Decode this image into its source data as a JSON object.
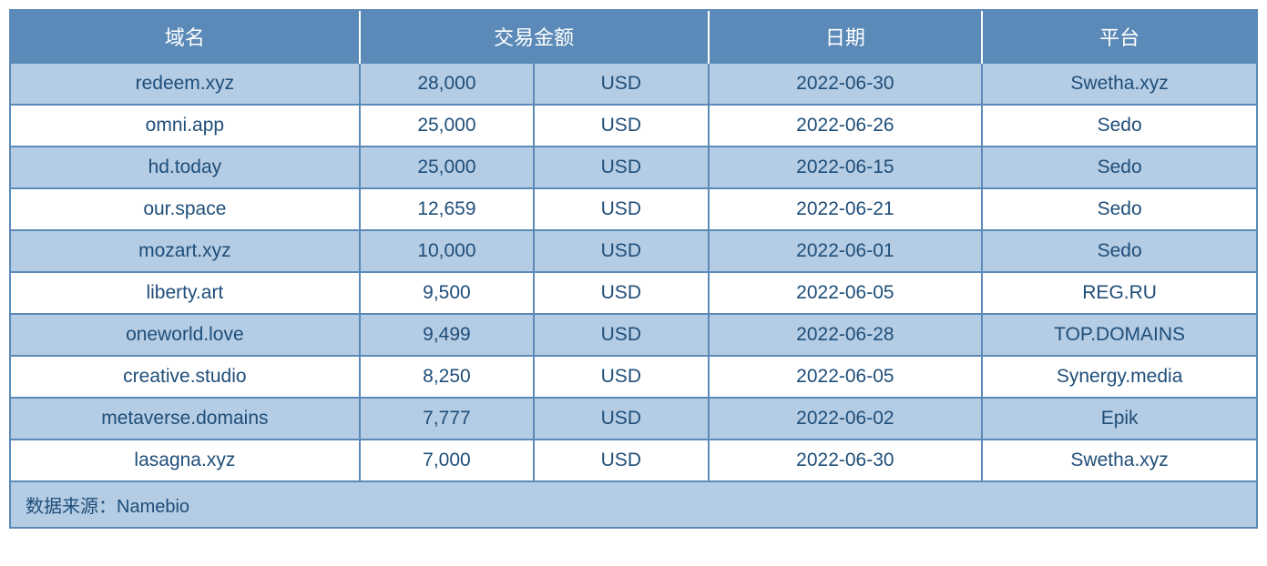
{
  "table": {
    "type": "table",
    "header_bg_color": "#5b8ab8",
    "header_text_color": "#ffffff",
    "cell_text_color": "#1f4e79",
    "odd_row_bg": "#b4cce4",
    "even_row_bg": "#ffffff",
    "border_color": "#5b8ab8",
    "header_fontsize": 22,
    "cell_fontsize": 21,
    "footer_fontsize": 20,
    "columns": [
      {
        "key": "domain",
        "label": "域名",
        "width_pct": 28
      },
      {
        "key": "amount_currency",
        "label": "交易金额",
        "width_pct": 28,
        "colspan": 2
      },
      {
        "key": "date",
        "label": "日期",
        "width_pct": 22
      },
      {
        "key": "platform",
        "label": "平台",
        "width_pct": 22
      }
    ],
    "rows": [
      {
        "domain": "redeem.xyz",
        "amount": "28,000",
        "currency": "USD",
        "date": "2022-06-30",
        "platform": "Swetha.xyz"
      },
      {
        "domain": "omni.app",
        "amount": "25,000",
        "currency": "USD",
        "date": "2022-06-26",
        "platform": "Sedo"
      },
      {
        "domain": "hd.today",
        "amount": "25,000",
        "currency": "USD",
        "date": "2022-06-15",
        "platform": "Sedo"
      },
      {
        "domain": "our.space",
        "amount": "12,659",
        "currency": "USD",
        "date": "2022-06-21",
        "platform": "Sedo"
      },
      {
        "domain": "mozart.xyz",
        "amount": "10,000",
        "currency": "USD",
        "date": "2022-06-01",
        "platform": "Sedo"
      },
      {
        "domain": "liberty.art",
        "amount": "9,500",
        "currency": "USD",
        "date": "2022-06-05",
        "platform": "REG.RU"
      },
      {
        "domain": "oneworld.love",
        "amount": "9,499",
        "currency": "USD",
        "date": "2022-06-28",
        "platform": "TOP.DOMAINS"
      },
      {
        "domain": "creative.studio",
        "amount": "8,250",
        "currency": "USD",
        "date": "2022-06-05",
        "platform": "Synergy.media"
      },
      {
        "domain": "metaverse.domains",
        "amount": "7,777",
        "currency": "USD",
        "date": "2022-06-02",
        "platform": "Epik"
      },
      {
        "domain": "lasagna.xyz",
        "amount": "7,000",
        "currency": "USD",
        "date": "2022-06-30",
        "platform": "Swetha.xyz"
      }
    ],
    "footer": "数据来源：Namebio"
  }
}
